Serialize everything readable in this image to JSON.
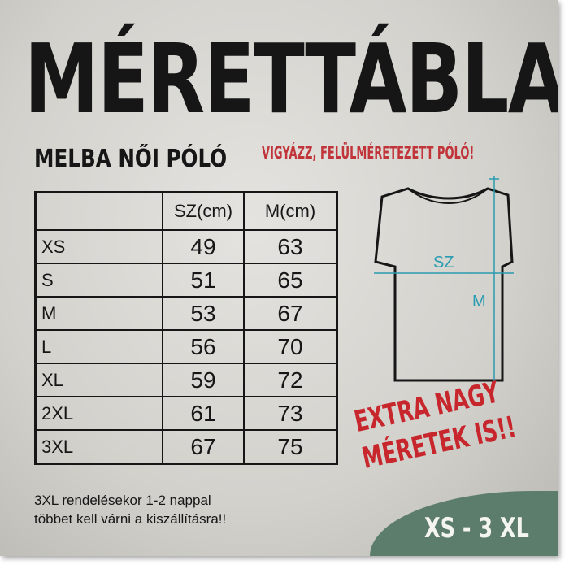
{
  "title": "MÉRETTÁBLA",
  "subtitle": "MELBA NŐI PÓLÓ",
  "warning": "VIGYÁZZ, FELÜLMÉRETEZETT PÓLÓ!",
  "table": {
    "headers": [
      "",
      "SZ(cm)",
      "M(cm)"
    ],
    "rows": [
      {
        "size": "XS",
        "sz": "49",
        "m": "63"
      },
      {
        "size": "S",
        "sz": "51",
        "m": "65"
      },
      {
        "size": "M",
        "sz": "53",
        "m": "67"
      },
      {
        "size": "L",
        "sz": "56",
        "m": "70"
      },
      {
        "size": "XL",
        "sz": "59",
        "m": "72"
      },
      {
        "size": "2XL",
        "sz": "61",
        "m": "73"
      },
      {
        "size": "3XL",
        "sz": "67",
        "m": "75"
      }
    ]
  },
  "diagram": {
    "width_label": "SZ",
    "length_label": "M",
    "accent": "#2a9bb0"
  },
  "note": {
    "line1": "3XL rendelésekor 1-2 nappal",
    "line2": "többet kell várni a kiszállításra!!"
  },
  "extra": {
    "line1": "EXTRA NAGY",
    "line2": "MÉRETEK IS!!",
    "color": "#c7262d"
  },
  "range": "XS - 3 XL"
}
